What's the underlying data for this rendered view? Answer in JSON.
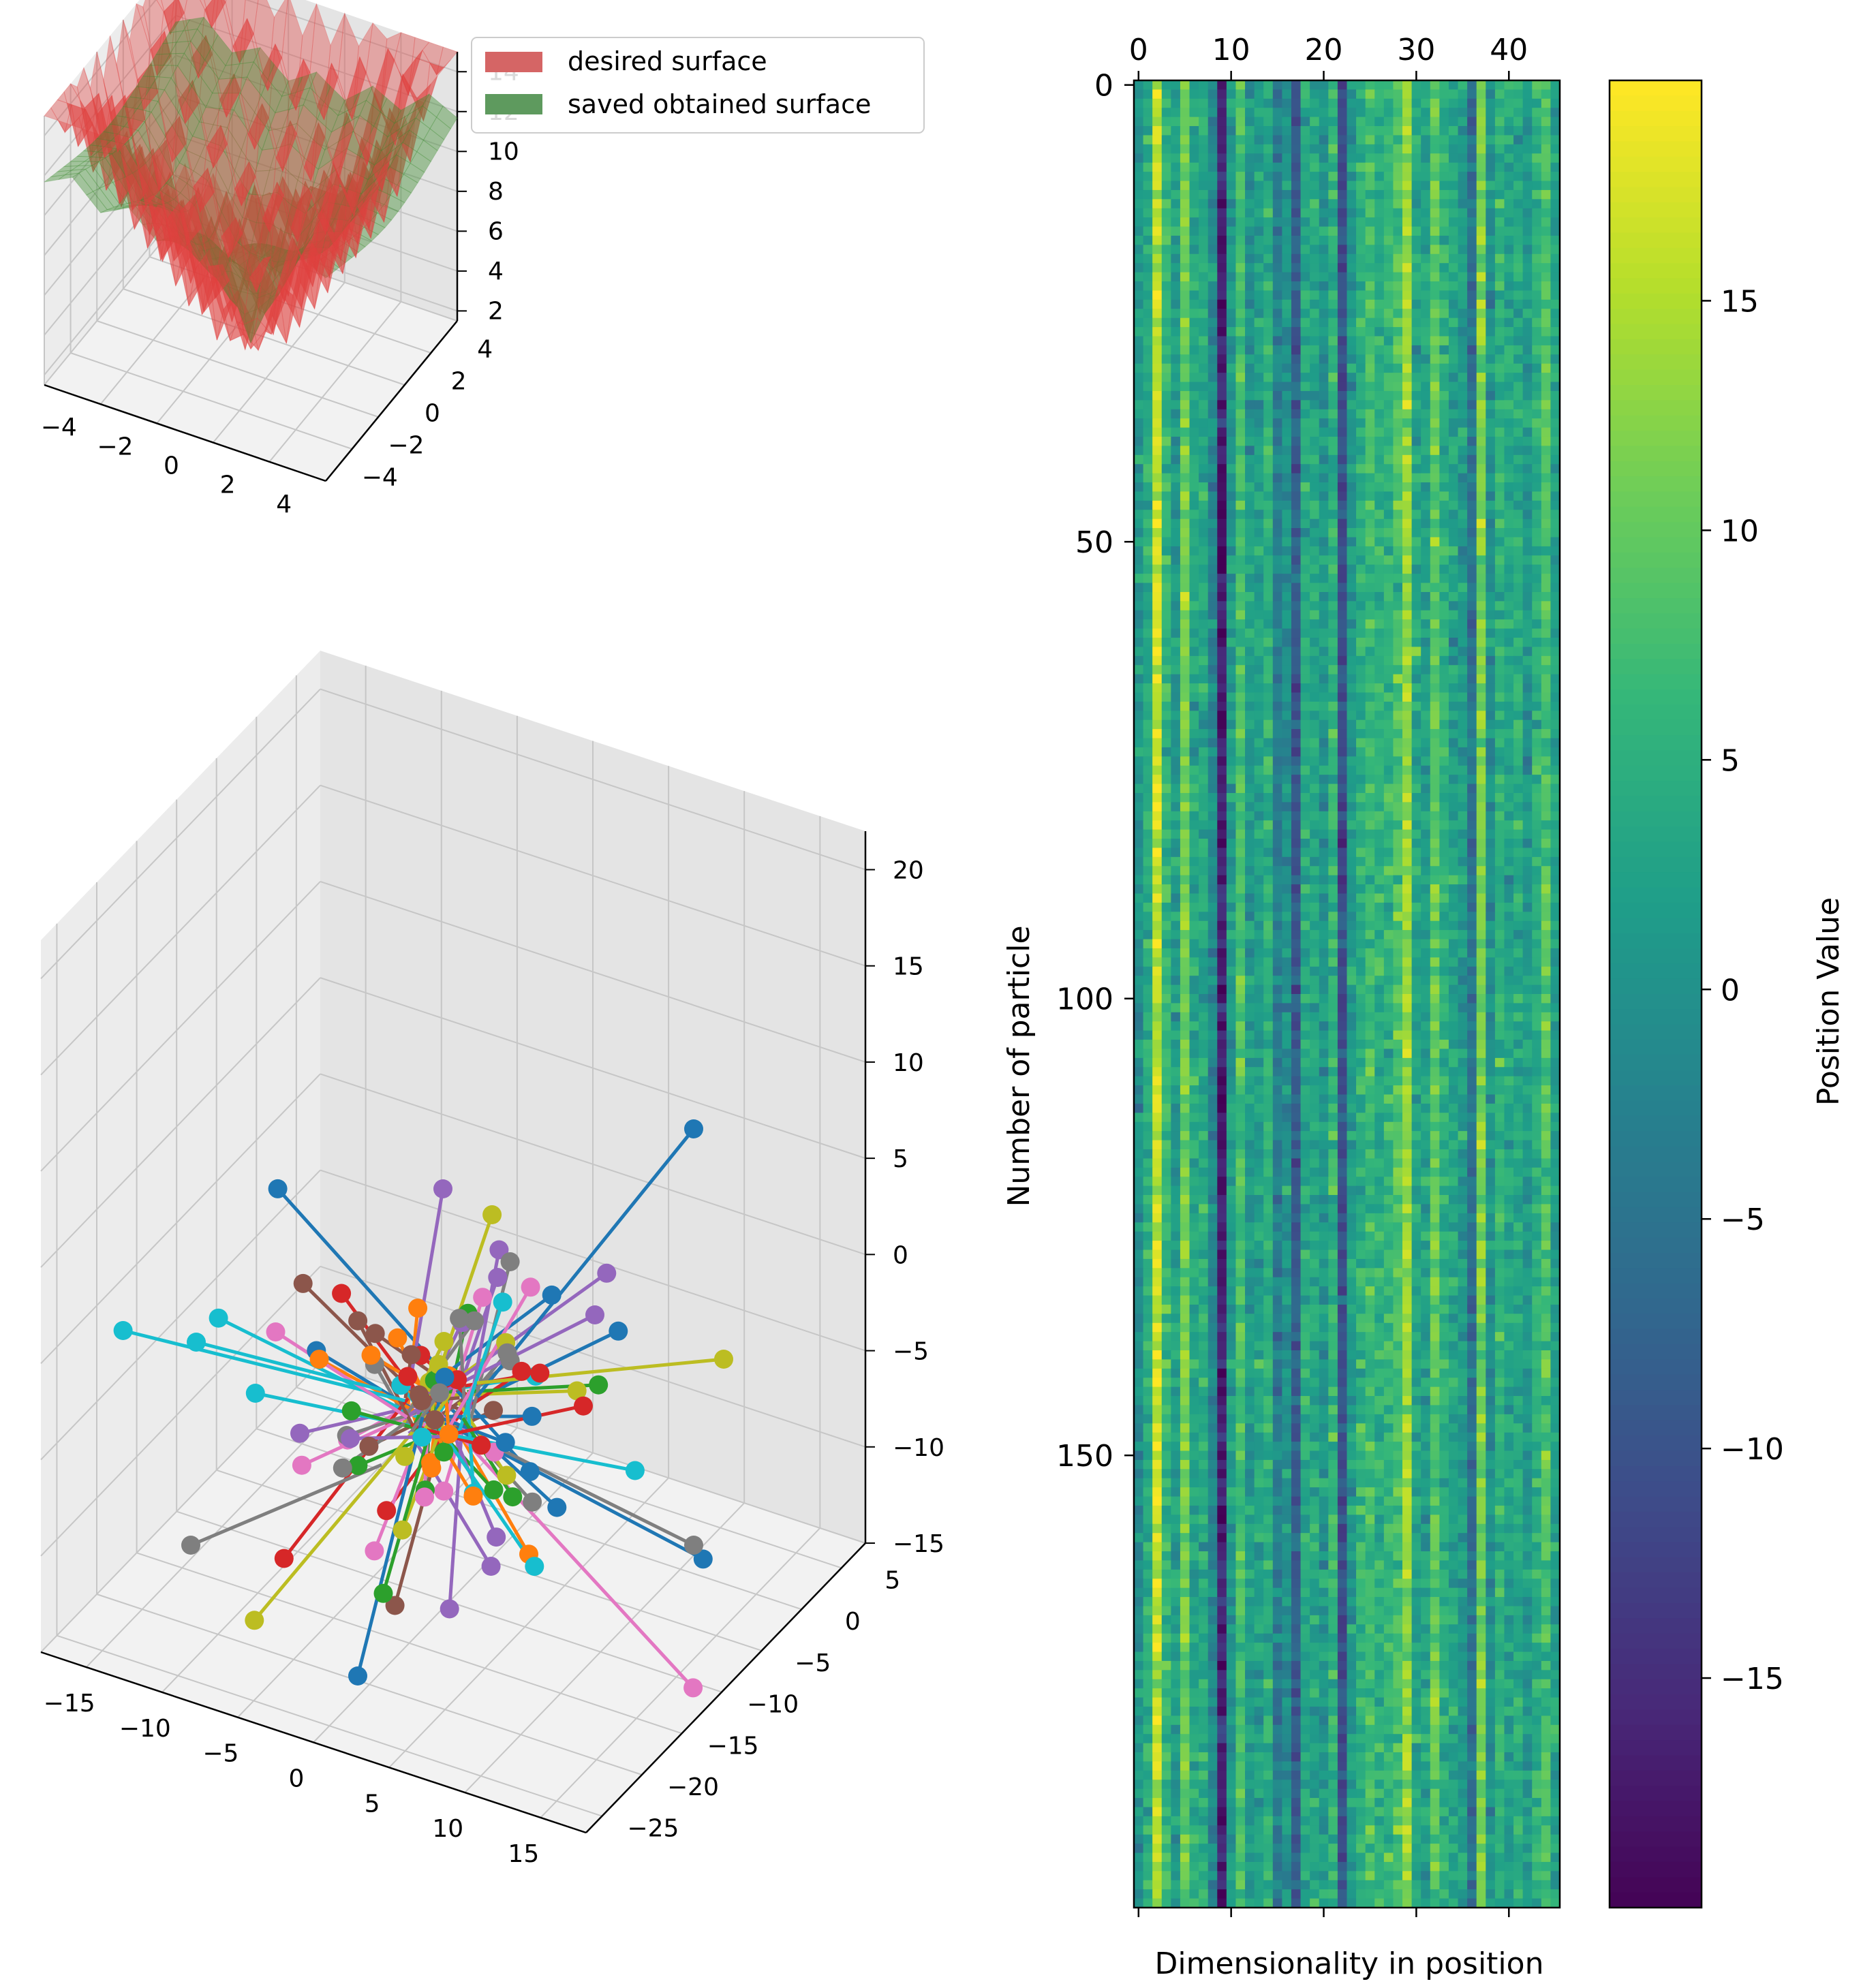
{
  "figure": {
    "panels": [
      "3d-surface",
      "3d-particle-lines",
      "heatmap"
    ]
  },
  "chart_data": [
    {
      "type": "surface",
      "panel": "3d-surface",
      "title": "",
      "legend": {
        "placement": "top-right",
        "entries": [
          {
            "label": "desired surface",
            "color": "#d56565"
          },
          {
            "label": "saved obtained surface",
            "color": "#5e9a5e"
          }
        ]
      },
      "x_ticks": [
        "−4",
        "−2",
        "0",
        "2",
        "4"
      ],
      "y_ticks": [
        "−4",
        "−2",
        "0",
        "2",
        "4"
      ],
      "z_ticks": [
        "2",
        "4",
        "6",
        "8",
        "10",
        "12",
        "14"
      ],
      "xlim": [
        -5,
        5
      ],
      "ylim": [
        -5,
        5
      ],
      "zlim": [
        1.5,
        15
      ],
      "grid": true,
      "surfaces": [
        {
          "name": "desired surface",
          "color": "#e0403f",
          "alpha": 0.55,
          "function": "ackley-like bowl with ripples",
          "min": 2,
          "max": 14.5
        },
        {
          "name": "saved obtained surface",
          "color": "#3b8a2e",
          "alpha": 0.6,
          "function": "smooth bowl fit",
          "min": 2,
          "max": 15
        }
      ]
    },
    {
      "type": "scatter-lines-3d",
      "panel": "3d-particle-lines",
      "title": "",
      "x_ticks": [
        "−15",
        "−10",
        "−5",
        "0",
        "5",
        "10",
        "15"
      ],
      "y_ticks": [
        "−25",
        "−20",
        "−15",
        "−10",
        "−5",
        "0",
        "5"
      ],
      "z_ticks": [
        "−15",
        "−10",
        "−5",
        "0",
        "5",
        "10",
        "15",
        "20"
      ],
      "xlim": [
        -18,
        18
      ],
      "ylim": [
        -27,
        8
      ],
      "zlim": [
        -15,
        22
      ],
      "grid": true,
      "colors": [
        "#1f77b4",
        "#ff7f0e",
        "#2ca02c",
        "#d62728",
        "#9467bd",
        "#8c564b",
        "#e377c2",
        "#7f7f7f",
        "#bcbd22",
        "#17becf"
      ],
      "series_count": 100,
      "line_origin": [
        0,
        0,
        0
      ]
    },
    {
      "type": "heatmap",
      "panel": "heatmap",
      "title": "",
      "xlabel": "Dimensionality in position",
      "ylabel": "Number of particle",
      "x_ticks": [
        "0",
        "10",
        "20",
        "30",
        "40"
      ],
      "y_ticks": [
        "0",
        "50",
        "100",
        "150"
      ],
      "columns": 46,
      "rows": 200,
      "colormap": "viridis",
      "colorbar": {
        "label": "Position Value",
        "ticks": [
          "−15",
          "−10",
          "−5",
          "0",
          "5",
          "10",
          "15"
        ],
        "vmin": -20,
        "vmax": 19.8
      },
      "column_means": [
        0.5,
        4.5,
        16.5,
        6.0,
        2.0,
        11.5,
        3.5,
        4.0,
        -1.5,
        -16.5,
        1.5,
        8.0,
        1.5,
        2.5,
        5.0,
        -3.0,
        0.0,
        -8.5,
        4.0,
        3.5,
        1.0,
        5.5,
        -10.5,
        1.5,
        5.0,
        7.0,
        5.0,
        6.0,
        8.5,
        14.0,
        3.0,
        2.5,
        10.0,
        5.0,
        3.0,
        1.5,
        -5.0,
        11.5,
        0.5,
        5.5,
        3.0,
        4.0,
        1.5,
        5.0,
        8.5,
        2.5
      ],
      "column_noise": 2.2
    }
  ]
}
